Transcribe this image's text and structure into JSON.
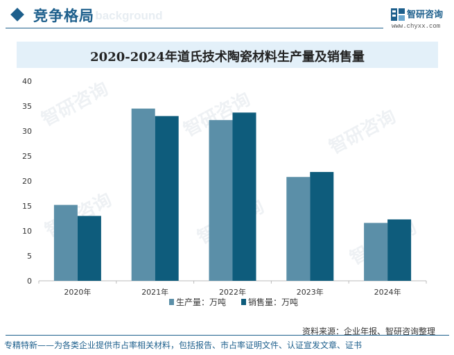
{
  "header": {
    "title": "竞争格局",
    "ghost_text": "ment background"
  },
  "brand": {
    "name": "智研咨询",
    "url": "www.chyxx.com"
  },
  "watermark": "智研咨询",
  "colors": {
    "primary": "#1d5f8c",
    "series_production": "#5b8fa8",
    "series_sales": "#0e5c7c",
    "title_band": "#e3f0f9"
  },
  "chart_data": {
    "type": "bar",
    "title": "2020-2024年道氏技术陶瓷材料生产量及销售量",
    "categories": [
      "2020年",
      "2021年",
      "2022年",
      "2023年",
      "2024年"
    ],
    "series": [
      {
        "name": "生产量：万吨",
        "values": [
          15.2,
          34.5,
          32.2,
          20.8,
          11.6
        ]
      },
      {
        "name": "销售量：万吨",
        "values": [
          13.0,
          33.0,
          33.7,
          21.8,
          12.3
        ]
      }
    ],
    "ylim": [
      0,
      40
    ],
    "yticks": [
      0,
      5,
      10,
      15,
      20,
      25,
      30,
      35,
      40
    ],
    "legend_position": "bottom",
    "grid": false
  },
  "source": "资料来源：企业年报、智研咨询整理",
  "footer": "专精特新——为各类企业提供市占率相关材料，包括报告、市占率证明文件、认证宣发文章、证书"
}
